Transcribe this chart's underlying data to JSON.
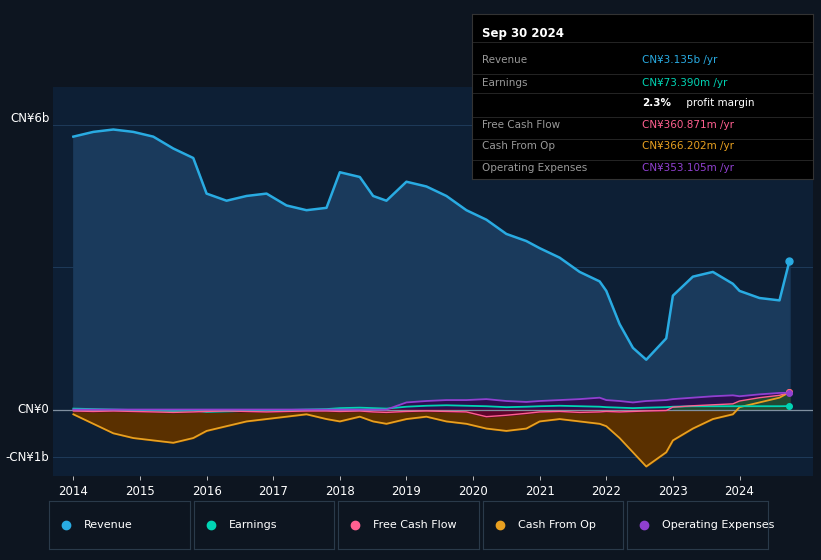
{
  "bg_color": "#0d1520",
  "plot_bg": "#0d1f35",
  "years": [
    2014.0,
    2014.3,
    2014.6,
    2014.9,
    2015.2,
    2015.5,
    2015.8,
    2016.0,
    2016.3,
    2016.6,
    2016.9,
    2017.2,
    2017.5,
    2017.8,
    2018.0,
    2018.3,
    2018.5,
    2018.7,
    2019.0,
    2019.3,
    2019.6,
    2019.9,
    2020.2,
    2020.5,
    2020.8,
    2021.0,
    2021.3,
    2021.6,
    2021.9,
    2022.0,
    2022.2,
    2022.4,
    2022.6,
    2022.9,
    2023.0,
    2023.3,
    2023.6,
    2023.9,
    2024.0,
    2024.3,
    2024.6,
    2024.75
  ],
  "revenue": [
    5.75,
    5.85,
    5.9,
    5.85,
    5.75,
    5.5,
    5.3,
    4.55,
    4.4,
    4.5,
    4.55,
    4.3,
    4.2,
    4.25,
    5.0,
    4.9,
    4.5,
    4.4,
    4.8,
    4.7,
    4.5,
    4.2,
    4.0,
    3.7,
    3.55,
    3.4,
    3.2,
    2.9,
    2.7,
    2.5,
    1.8,
    1.3,
    1.05,
    1.5,
    2.4,
    2.8,
    2.9,
    2.65,
    2.5,
    2.35,
    2.3,
    3.135
  ],
  "earnings": [
    0.02,
    0.01,
    0.0,
    -0.01,
    -0.02,
    -0.03,
    -0.02,
    -0.05,
    -0.04,
    -0.03,
    -0.02,
    -0.01,
    0.0,
    0.01,
    0.03,
    0.04,
    0.03,
    0.02,
    0.06,
    0.08,
    0.09,
    0.08,
    0.07,
    0.05,
    0.06,
    0.07,
    0.08,
    0.07,
    0.06,
    0.05,
    0.04,
    0.03,
    0.04,
    0.05,
    0.06,
    0.07,
    0.07,
    0.07,
    0.07,
    0.07,
    0.07,
    0.0734
  ],
  "free_cash_flow": [
    -0.03,
    -0.04,
    -0.03,
    -0.04,
    -0.05,
    -0.06,
    -0.05,
    -0.04,
    -0.03,
    -0.04,
    -0.05,
    -0.04,
    -0.03,
    -0.03,
    -0.04,
    -0.03,
    -0.05,
    -0.06,
    -0.04,
    -0.03,
    -0.04,
    -0.05,
    -0.15,
    -0.12,
    -0.08,
    -0.05,
    -0.04,
    -0.06,
    -0.05,
    -0.04,
    -0.05,
    -0.04,
    -0.03,
    -0.02,
    0.05,
    0.08,
    0.1,
    0.12,
    0.18,
    0.25,
    0.3,
    0.361
  ],
  "cash_from_op": [
    -0.1,
    -0.3,
    -0.5,
    -0.6,
    -0.65,
    -0.7,
    -0.6,
    -0.45,
    -0.35,
    -0.25,
    -0.2,
    -0.15,
    -0.1,
    -0.2,
    -0.25,
    -0.15,
    -0.25,
    -0.3,
    -0.2,
    -0.15,
    -0.25,
    -0.3,
    -0.4,
    -0.45,
    -0.4,
    -0.25,
    -0.2,
    -0.25,
    -0.3,
    -0.35,
    -0.6,
    -0.9,
    -1.2,
    -0.9,
    -0.65,
    -0.4,
    -0.2,
    -0.1,
    0.05,
    0.15,
    0.25,
    0.366
  ],
  "operating_expenses": [
    0.0,
    0.0,
    0.0,
    0.0,
    0.0,
    0.0,
    0.0,
    0.0,
    0.0,
    0.0,
    0.0,
    0.0,
    0.0,
    0.0,
    0.0,
    0.0,
    0.0,
    0.0,
    0.15,
    0.18,
    0.2,
    0.2,
    0.22,
    0.18,
    0.16,
    0.18,
    0.2,
    0.22,
    0.25,
    0.2,
    0.18,
    0.15,
    0.18,
    0.2,
    0.22,
    0.25,
    0.28,
    0.3,
    0.28,
    0.32,
    0.35,
    0.353
  ],
  "revenue_line_color": "#29abe2",
  "revenue_fill_color": "#1a3a5c",
  "earnings_line_color": "#00d4b4",
  "earnings_fill_pos": "#004a40",
  "earnings_fill_neg": "#1a0a10",
  "fcf_line_color": "#ff6090",
  "fcf_fill_neg": "#600030",
  "fcf_fill_pos": "#205030",
  "cashop_line_color": "#e8a020",
  "cashop_fill_neg": "#5a3000",
  "cashop_fill_pos": "#305020",
  "opex_line_color": "#9040d0",
  "opex_fill_color": "#2a1050",
  "gridline_color": "#1e3a5a",
  "zeroline_color": "#8090a0",
  "ylabel_top": "CN¥6b",
  "ylabel_zero": "CN¥0",
  "ylabel_bottom": "-CN¥1b",
  "xlim": [
    2013.7,
    2025.1
  ],
  "ylim": [
    -1.4,
    6.8
  ],
  "xtick_labels": [
    "2014",
    "2015",
    "2016",
    "2017",
    "2018",
    "2019",
    "2020",
    "2021",
    "2022",
    "2023",
    "2024"
  ],
  "xtick_positions": [
    2014,
    2015,
    2016,
    2017,
    2018,
    2019,
    2020,
    2021,
    2022,
    2023,
    2024
  ],
  "legend_items": [
    {
      "label": "Revenue",
      "color": "#29abe2"
    },
    {
      "label": "Earnings",
      "color": "#00d4b4"
    },
    {
      "label": "Free Cash Flow",
      "color": "#ff6090"
    },
    {
      "label": "Cash From Op",
      "color": "#e8a020"
    },
    {
      "label": "Operating Expenses",
      "color": "#9040d0"
    }
  ],
  "info_title": "Sep 30 2024",
  "info_rows": [
    {
      "label": "Revenue",
      "value": "CN¥3.135b /yr",
      "color": "#29abe2"
    },
    {
      "label": "Earnings",
      "value": "CN¥73.390m /yr",
      "color": "#00d4b4"
    },
    {
      "label": "",
      "value": "2.3% profit margin",
      "color": "#ffffff",
      "bold_part": "2.3%"
    },
    {
      "label": "Free Cash Flow",
      "value": "CN¥360.871m /yr",
      "color": "#ff6090"
    },
    {
      "label": "Cash From Op",
      "value": "CN¥366.202m /yr",
      "color": "#e8a020"
    },
    {
      "label": "Operating Expenses",
      "value": "CN¥353.105m /yr",
      "color": "#9040d0"
    }
  ]
}
